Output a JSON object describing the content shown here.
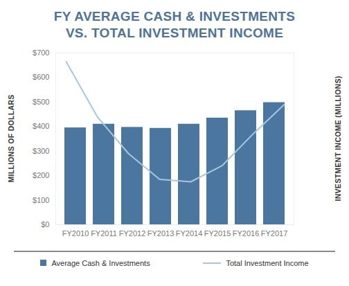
{
  "chart_data": {
    "type": "bar",
    "title": "FY AVERAGE CASH & INVESTMENTS VS. TOTAL INVESTMENT INCOME",
    "y_label": "MILLIONS OF DOLLARS",
    "y2_label": "INVESTMENT INCOME (MILLIONS)",
    "categories": [
      "FY2010",
      "FY2011",
      "FY2012",
      "FY2013",
      "FY2014",
      "FY2015",
      "FY2016",
      "FY2017"
    ],
    "series": [
      {
        "name": "Average Cash & Investments",
        "type": "bar",
        "color": "#4a76a0",
        "values": [
          395,
          410,
          397,
          393,
          410,
          435,
          465,
          498
        ]
      },
      {
        "name": "Total Investment Income",
        "type": "line",
        "color": "#a8c7dd",
        "axis": "y2",
        "values": [
          665,
          440,
          290,
          185,
          175,
          240,
          370,
          490
        ]
      }
    ],
    "ylim": [
      0,
      700
    ],
    "yticks": [
      {
        "value": 0,
        "label": "$0"
      },
      {
        "value": 100,
        "label": "$100"
      },
      {
        "value": 200,
        "label": "$200"
      },
      {
        "value": 300,
        "label": "$300"
      },
      {
        "value": 400,
        "label": "$400"
      },
      {
        "value": 500,
        "label": "$500"
      },
      {
        "value": 600,
        "label": "$600"
      },
      {
        "value": 700,
        "label": "$700"
      }
    ],
    "y2lim": [
      0,
      700
    ],
    "y2ticks": [],
    "grid": false,
    "legend": "bottom"
  }
}
